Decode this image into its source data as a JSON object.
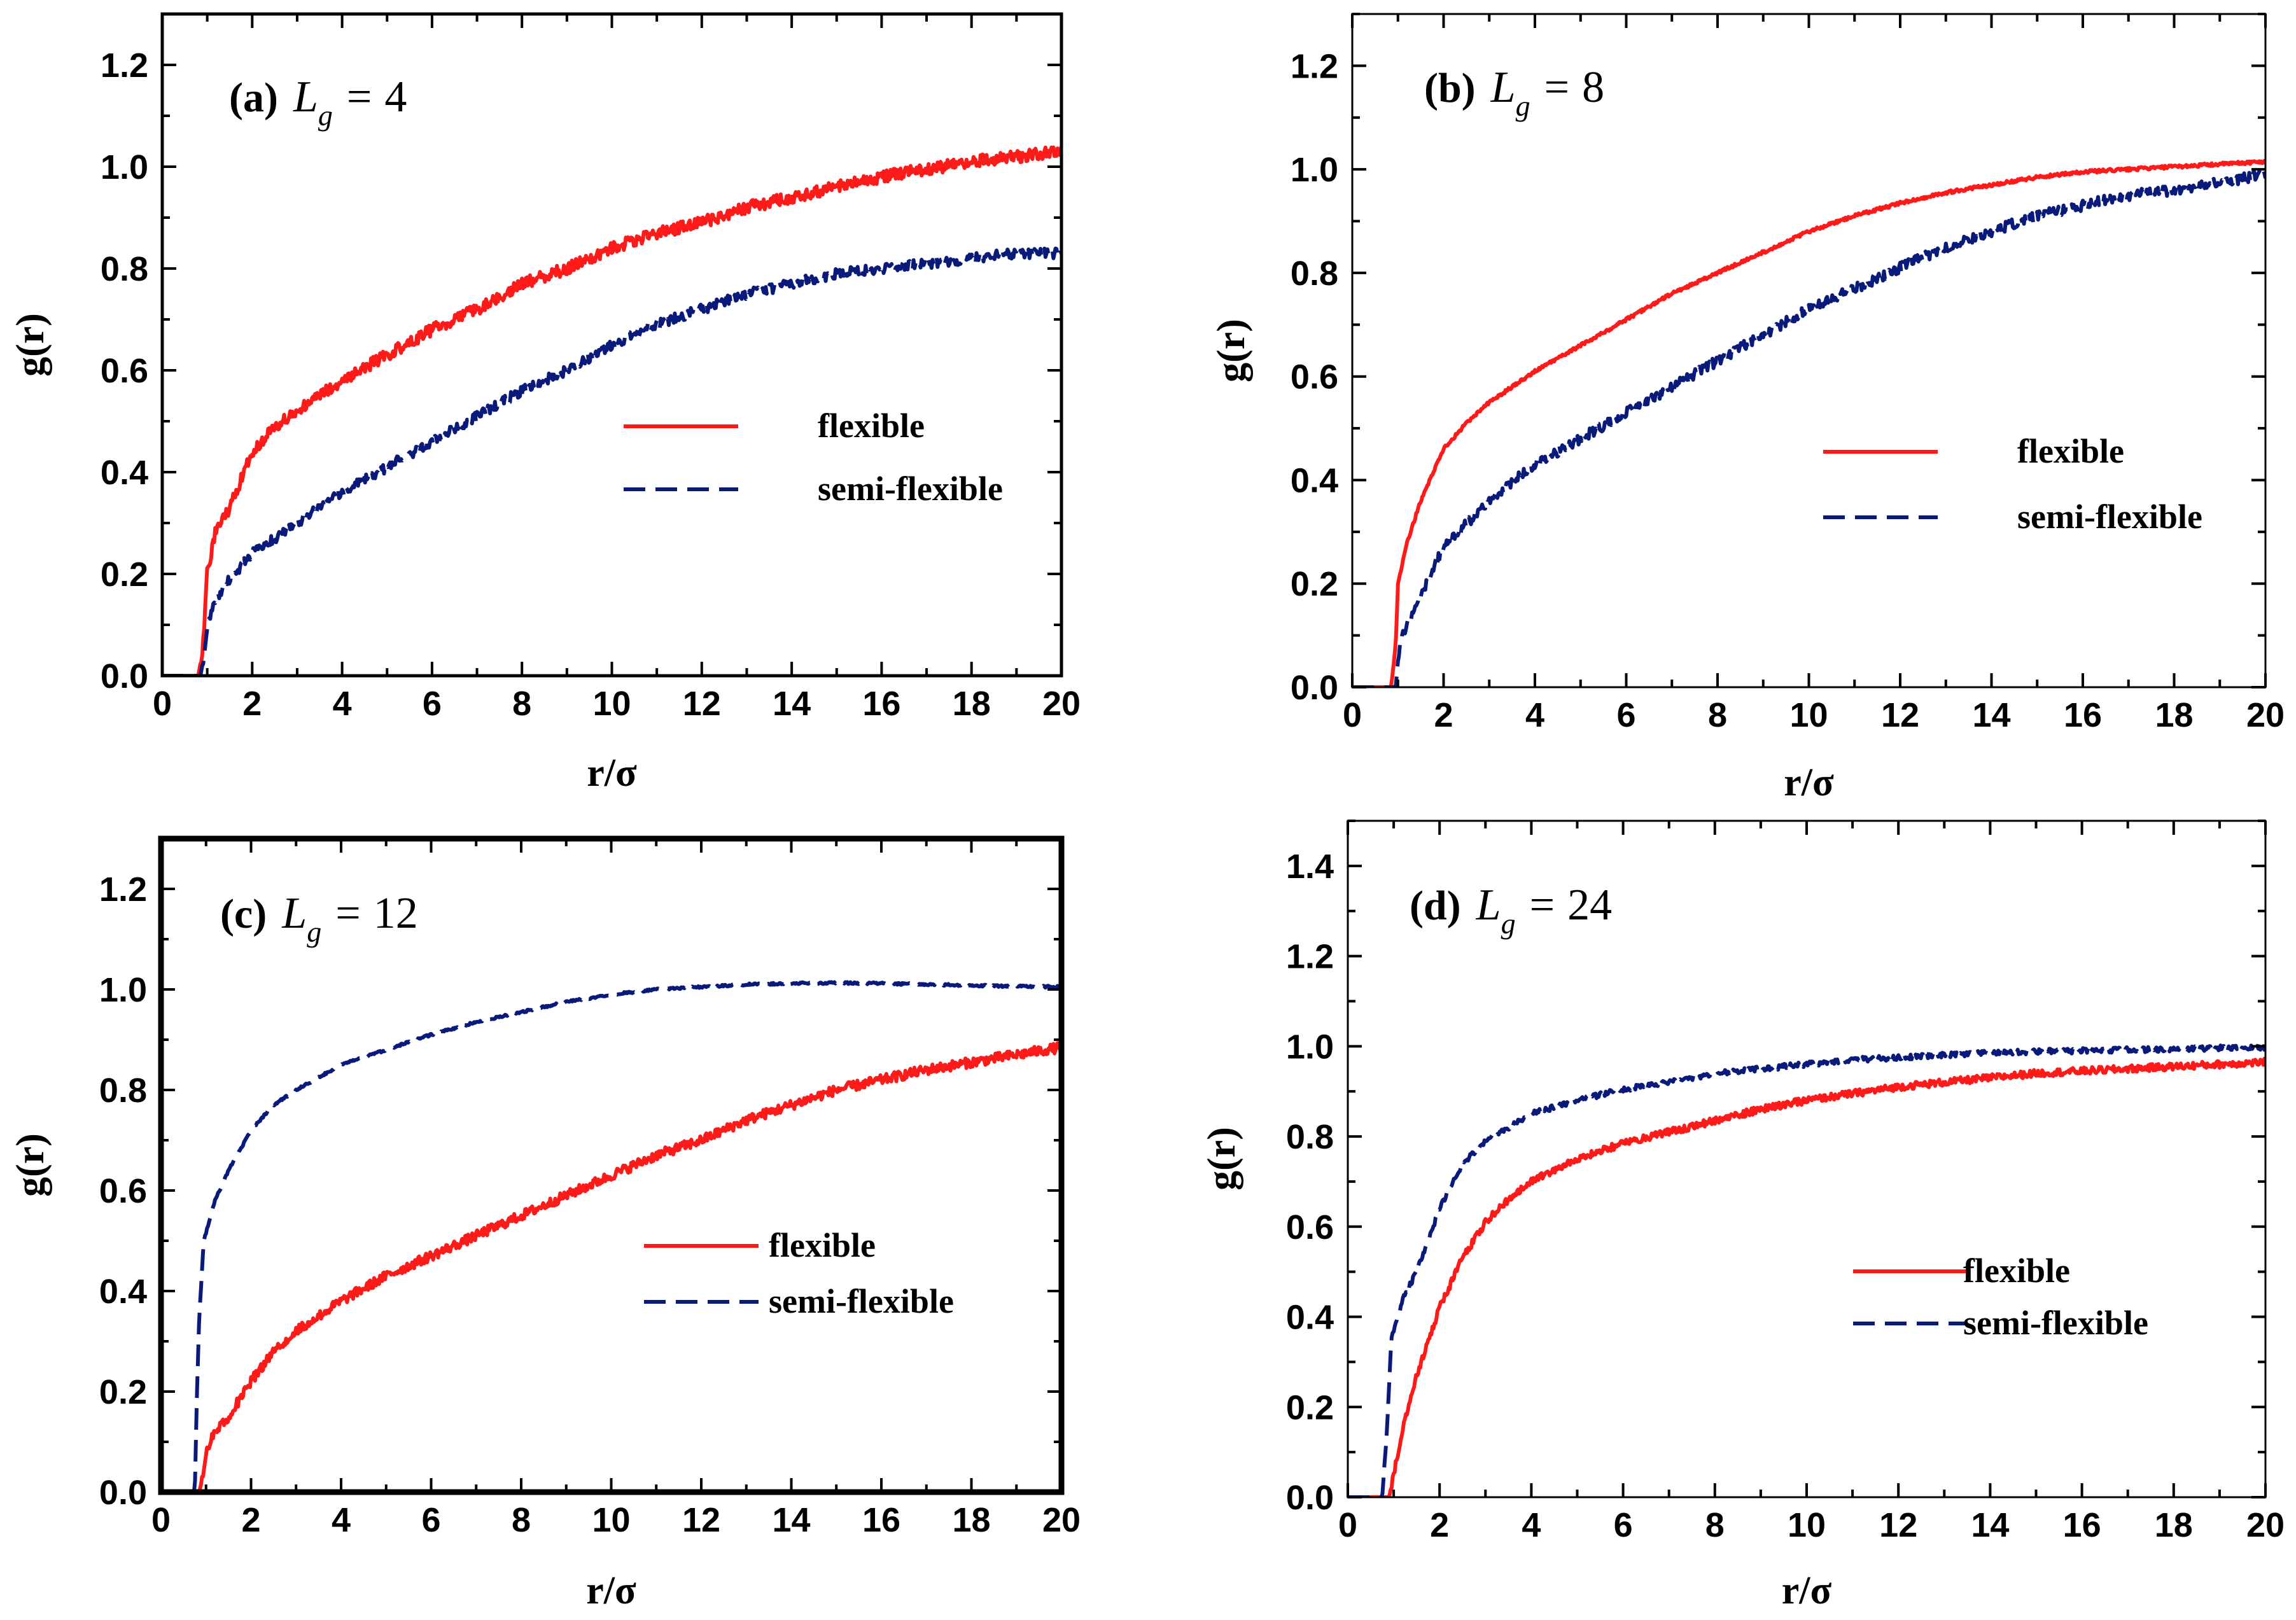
{
  "colors": {
    "flexible": "#ff1a1a",
    "semi_flexible": "#0a1a7a",
    "axis": "#000000"
  },
  "chart_data": [
    {
      "type": "line",
      "panel_tag": "(a)",
      "title_symbol": "L",
      "title_subscript": "g",
      "title_equals": "=",
      "title_value": "4",
      "xlabel": "r/σ",
      "ylabel": "g(r)",
      "xlim": [
        0,
        20
      ],
      "ylim": [
        0,
        1.3
      ],
      "xticks": [
        0,
        2,
        4,
        6,
        8,
        10,
        12,
        14,
        16,
        18,
        20
      ],
      "xtick_labels": [
        "0",
        "2",
        "4",
        "6",
        "8",
        "10",
        "12",
        "14",
        "16",
        "18",
        "20"
      ],
      "yticks": [
        0.0,
        0.2,
        0.4,
        0.6,
        0.8,
        1.0,
        1.2
      ],
      "ytick_labels": [
        "0.0",
        "0.2",
        "0.4",
        "0.6",
        "0.8",
        "1.0",
        "1.2"
      ],
      "legend_position": "middle-right",
      "legend": [
        "flexible",
        "semi-flexible"
      ],
      "series": [
        {
          "name": "flexible",
          "style": "solid",
          "noise": 0.012,
          "x": [
            0,
            0.8,
            0.9,
            1.0,
            1.2,
            1.5,
            2.0,
            2.5,
            3,
            4,
            5,
            6,
            7,
            8,
            9,
            10,
            11,
            12,
            13,
            14,
            15,
            16,
            17,
            18,
            19,
            20
          ],
          "y": [
            0,
            0,
            0.05,
            0.2,
            0.29,
            0.33,
            0.44,
            0.49,
            0.52,
            0.58,
            0.63,
            0.68,
            0.72,
            0.77,
            0.8,
            0.84,
            0.87,
            0.89,
            0.92,
            0.94,
            0.96,
            0.98,
            0.995,
            1.01,
            1.02,
            1.03
          ]
        },
        {
          "name": "semi-flexible",
          "style": "dashed",
          "noise": 0.01,
          "x": [
            0,
            0.85,
            0.95,
            1.0,
            1.2,
            1.5,
            2,
            3,
            4,
            5,
            6,
            7,
            8,
            9,
            10,
            11,
            12,
            13,
            14,
            15,
            16,
            17,
            18,
            19,
            20
          ],
          "y": [
            0,
            0,
            0.05,
            0.1,
            0.15,
            0.19,
            0.24,
            0.3,
            0.36,
            0.41,
            0.46,
            0.51,
            0.56,
            0.6,
            0.65,
            0.69,
            0.72,
            0.75,
            0.77,
            0.79,
            0.8,
            0.81,
            0.82,
            0.83,
            0.83
          ]
        }
      ]
    },
    {
      "type": "line",
      "panel_tag": "(b)",
      "title_symbol": "L",
      "title_subscript": "g",
      "title_equals": "=",
      "title_value": "8",
      "xlabel": "r/σ",
      "ylabel": "g(r)",
      "xlim": [
        0,
        20
      ],
      "ylim": [
        0,
        1.3
      ],
      "xticks": [
        0,
        2,
        4,
        6,
        8,
        10,
        12,
        14,
        16,
        18,
        20
      ],
      "xtick_labels": [
        "0",
        "2",
        "4",
        "6",
        "8",
        "10",
        "12",
        "14",
        "16",
        "18",
        "20"
      ],
      "yticks": [
        0.0,
        0.2,
        0.4,
        0.6,
        0.8,
        1.0,
        1.2
      ],
      "ytick_labels": [
        "0.0",
        "0.2",
        "0.4",
        "0.6",
        "0.8",
        "1.0",
        "1.2"
      ],
      "legend_position": "middle-right",
      "legend": [
        "flexible",
        "semi-flexible"
      ],
      "series": [
        {
          "name": "flexible",
          "style": "solid",
          "noise": 0.003,
          "x": [
            0,
            0.85,
            0.95,
            1.0,
            1.2,
            1.5,
            2.0,
            2.5,
            3,
            4,
            5,
            6,
            7,
            8,
            9,
            10,
            11,
            12,
            13,
            14,
            15,
            16,
            17,
            18,
            19,
            20
          ],
          "y": [
            0,
            0,
            0.08,
            0.2,
            0.28,
            0.36,
            0.46,
            0.51,
            0.55,
            0.61,
            0.66,
            0.71,
            0.76,
            0.8,
            0.84,
            0.88,
            0.91,
            0.935,
            0.955,
            0.97,
            0.985,
            0.995,
            1.0,
            1.005,
            1.01,
            1.015
          ]
        },
        {
          "name": "semi-flexible",
          "style": "dashed",
          "noise": 0.01,
          "x": [
            0,
            0.95,
            1.0,
            1.1,
            1.5,
            2,
            3,
            4,
            5,
            6,
            7,
            8,
            9,
            10,
            11,
            12,
            13,
            14,
            15,
            16,
            17,
            18,
            19,
            20
          ],
          "y": [
            0,
            0,
            0.05,
            0.1,
            0.18,
            0.27,
            0.36,
            0.43,
            0.48,
            0.53,
            0.58,
            0.63,
            0.68,
            0.73,
            0.77,
            0.81,
            0.85,
            0.88,
            0.91,
            0.93,
            0.95,
            0.96,
            0.975,
            0.99
          ]
        }
      ]
    },
    {
      "type": "line",
      "panel_tag": "(c)",
      "title_symbol": "L",
      "title_subscript": "g",
      "title_equals": "=",
      "title_value": "12",
      "xlabel": "r/σ",
      "ylabel": "g(r)",
      "xlim": [
        0,
        20
      ],
      "ylim": [
        0,
        1.3
      ],
      "xticks": [
        0,
        2,
        4,
        6,
        8,
        10,
        12,
        14,
        16,
        18,
        20
      ],
      "xtick_labels": [
        "0",
        "2",
        "4",
        "6",
        "8",
        "10",
        "12",
        "14",
        "16",
        "18",
        "20"
      ],
      "yticks": [
        0.0,
        0.2,
        0.4,
        0.6,
        0.8,
        1.0,
        1.2
      ],
      "ytick_labels": [
        "0.0",
        "0.2",
        "0.4",
        "0.6",
        "0.8",
        "1.0",
        "1.2"
      ],
      "legend_position": "middle-right",
      "legend": [
        "flexible",
        "semi-flexible"
      ],
      "series": [
        {
          "name": "flexible",
          "style": "solid",
          "noise": 0.01,
          "x": [
            0,
            0.85,
            0.95,
            1.0,
            1.2,
            1.5,
            2,
            2.5,
            3,
            4,
            5,
            6,
            7,
            8,
            9,
            10,
            11,
            12,
            13,
            14,
            15,
            16,
            17,
            18,
            19,
            20
          ],
          "y": [
            0,
            0,
            0.04,
            0.08,
            0.12,
            0.15,
            0.22,
            0.28,
            0.32,
            0.38,
            0.43,
            0.47,
            0.51,
            0.55,
            0.59,
            0.63,
            0.67,
            0.7,
            0.74,
            0.77,
            0.8,
            0.82,
            0.84,
            0.855,
            0.87,
            0.885
          ]
        },
        {
          "name": "semi-flexible",
          "style": "dashed",
          "noise": 0.002,
          "x": [
            0,
            0.75,
            0.8,
            0.85,
            0.95,
            1.2,
            1.5,
            2,
            2.5,
            3,
            4,
            5,
            6,
            7,
            8,
            9,
            10,
            11,
            12,
            13,
            14,
            15,
            16,
            17,
            18,
            19,
            20
          ],
          "y": [
            0,
            0,
            0.2,
            0.35,
            0.5,
            0.58,
            0.64,
            0.72,
            0.77,
            0.8,
            0.85,
            0.88,
            0.91,
            0.935,
            0.955,
            0.975,
            0.99,
            1.0,
            1.005,
            1.01,
            1.012,
            1.013,
            1.012,
            1.01,
            1.008,
            1.006,
            1.005
          ]
        }
      ]
    },
    {
      "type": "line",
      "panel_tag": "(d)",
      "title_symbol": "L",
      "title_subscript": "g",
      "title_equals": "=",
      "title_value": "24",
      "xlabel": "r/σ",
      "ylabel": "g(r)",
      "xlim": [
        0,
        20
      ],
      "ylim": [
        0,
        1.5
      ],
      "xticks": [
        0,
        2,
        4,
        6,
        8,
        10,
        12,
        14,
        16,
        18,
        20
      ],
      "xtick_labels": [
        "0",
        "2",
        "4",
        "6",
        "8",
        "10",
        "12",
        "14",
        "16",
        "18",
        "20"
      ],
      "yticks": [
        0.0,
        0.2,
        0.4,
        0.6,
        0.8,
        1.0,
        1.2,
        1.4
      ],
      "ytick_labels": [
        "0.0",
        "0.2",
        "0.4",
        "0.6",
        "0.8",
        "1.0",
        "1.2",
        "1.4"
      ],
      "legend_position": "lower-right",
      "legend": [
        "flexible",
        "semi-flexible"
      ],
      "series": [
        {
          "name": "flexible",
          "style": "solid",
          "noise": 0.008,
          "x": [
            0,
            0.9,
            1.0,
            1.2,
            1.5,
            2,
            2.5,
            3,
            3.5,
            4,
            5,
            6,
            7,
            8,
            9,
            10,
            11,
            12,
            13,
            14,
            15,
            16,
            17,
            18,
            19,
            20
          ],
          "y": [
            0,
            0,
            0.05,
            0.15,
            0.27,
            0.42,
            0.53,
            0.61,
            0.66,
            0.7,
            0.75,
            0.785,
            0.81,
            0.835,
            0.86,
            0.88,
            0.895,
            0.91,
            0.92,
            0.93,
            0.94,
            0.945,
            0.95,
            0.955,
            0.96,
            0.965
          ]
        },
        {
          "name": "semi-flexible",
          "style": "dashed",
          "noise": 0.006,
          "x": [
            0,
            0.75,
            0.85,
            0.95,
            1.2,
            1.5,
            2,
            2.5,
            3,
            3.5,
            4,
            5,
            6,
            7,
            8,
            9,
            10,
            11,
            12,
            13,
            14,
            15,
            16,
            17,
            18,
            19,
            20
          ],
          "y": [
            0,
            0,
            0.15,
            0.35,
            0.44,
            0.5,
            0.64,
            0.74,
            0.79,
            0.82,
            0.85,
            0.88,
            0.905,
            0.92,
            0.94,
            0.95,
            0.96,
            0.97,
            0.975,
            0.98,
            0.985,
            0.988,
            0.99,
            0.992,
            0.994,
            0.996,
            0.997
          ]
        }
      ]
    }
  ]
}
